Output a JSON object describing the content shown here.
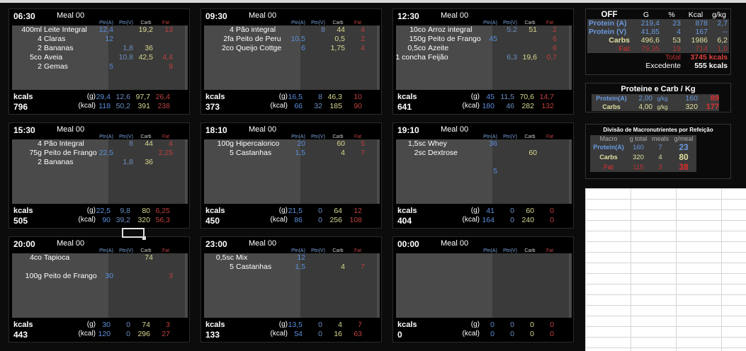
{
  "col_headers": {
    "ptnA": "Ptn(A)",
    "ptnV": "Ptn(V)",
    "carb": "Carb",
    "fat": "Fat"
  },
  "footer_labels": {
    "kcals": "kcals",
    "g": "(g)",
    "kcal": "(kcal)"
  },
  "meals": [
    {
      "time": "06:30",
      "name": "Meal 00",
      "items": [
        {
          "q": "400ml",
          "f": "Leite Integral",
          "a": "12,4",
          "v": "",
          "c": "19,2",
          "x": "13"
        },
        {
          "q": "4",
          "f": "Claras",
          "a": "12",
          "v": "",
          "c": "",
          "x": ""
        },
        {
          "q": "2",
          "f": "Bananas",
          "a": "",
          "v": "1,8",
          "c": "36",
          "x": ""
        },
        {
          "q": "5co",
          "f": "Aveia",
          "a": "",
          "v": "10,8",
          "c": "42,5",
          "x": "4,4"
        },
        {
          "q": "2",
          "f": "Gemas",
          "a": "5",
          "v": "",
          "c": "",
          "x": "9"
        }
      ],
      "kcal_total": "796",
      "g": {
        "a": "29,4",
        "v": "12,6",
        "c": "97,7",
        "x": "26,4"
      },
      "kc": {
        "a": "118",
        "v": "50,2",
        "c": "391",
        "x": "238"
      }
    },
    {
      "time": "09:30",
      "name": "Meal 00",
      "items": [
        {
          "q": "4",
          "f": "Pão integral",
          "a": "",
          "v": "8",
          "c": "44",
          "x": "4"
        },
        {
          "q": "2fa",
          "f": "Peito de Peru",
          "a": "10,5",
          "v": "",
          "c": "0,5",
          "x": "2"
        },
        {
          "q": "2co",
          "f": "Queijo Cottge",
          "a": "6",
          "v": "",
          "c": "1,75",
          "x": "4"
        }
      ],
      "kcal_total": "373",
      "g": {
        "a": "16,5",
        "v": "8",
        "c": "46,3",
        "x": "10"
      },
      "kc": {
        "a": "66",
        "v": "32",
        "c": "185",
        "x": "90"
      }
    },
    {
      "time": "12:30",
      "name": "Meal 00",
      "items": [
        {
          "q": "10co",
          "f": "Arroz integral",
          "a": "",
          "v": "5,2",
          "c": "51",
          "x": "2"
        },
        {
          "q": "150g",
          "f": "Peito de Frango",
          "a": "45",
          "v": "",
          "c": "",
          "x": "6"
        },
        {
          "q": "0,5co",
          "f": "Azeite",
          "a": "",
          "v": "",
          "c": "",
          "x": "6"
        },
        {
          "q": "1 concha",
          "f": "Feijão",
          "a": "",
          "v": "6,3",
          "c": "19,6",
          "x": "0,7"
        }
      ],
      "kcal_total": "641",
      "g": {
        "a": "45",
        "v": "11,5",
        "c": "70,6",
        "x": "14,7"
      },
      "kc": {
        "a": "180",
        "v": "46",
        "c": "282",
        "x": "132"
      }
    },
    {
      "time": "15:30",
      "name": "Meal 00",
      "items": [
        {
          "q": "4",
          "f": "Pão Integral",
          "a": "",
          "v": "8",
          "c": "44",
          "x": "4"
        },
        {
          "q": "75g",
          "f": "Peito de Frango",
          "a": "22,5",
          "v": "",
          "c": "",
          "x": "2,25"
        },
        {
          "q": "2",
          "f": "Bananas",
          "a": "",
          "v": "1,8",
          "c": "36",
          "x": ""
        }
      ],
      "kcal_total": "505",
      "g": {
        "a": "22,5",
        "v": "9,8",
        "c": "80",
        "x": "6,25"
      },
      "kc": {
        "a": "90",
        "v": "39,2",
        "c": "320",
        "x": "56,3"
      }
    },
    {
      "time": "18:10",
      "name": "Meal 00",
      "items": [
        {
          "q": "100g",
          "f": "Hipercalorico",
          "a": "20",
          "v": "",
          "c": "60",
          "x": "5"
        },
        {
          "q": "5",
          "f": "Castanhas",
          "a": "1,5",
          "v": "",
          "c": "4",
          "x": "7"
        }
      ],
      "kcal_total": "450",
      "g": {
        "a": "21,5",
        "v": "0",
        "c": "64",
        "x": "12"
      },
      "kc": {
        "a": "86",
        "v": "0",
        "c": "256",
        "x": "108"
      }
    },
    {
      "time": "19:10",
      "name": "Meal 00",
      "items": [
        {
          "q": "1,5sc",
          "f": "Whey",
          "a": "36",
          "v": "",
          "c": "",
          "x": ""
        },
        {
          "q": "2sc",
          "f": "Dextrose",
          "a": "",
          "v": "",
          "c": "60",
          "x": ""
        },
        {
          "q": "",
          "f": "",
          "a": "",
          "v": "",
          "c": "",
          "x": ""
        },
        {
          "q": "",
          "f": "",
          "a": "5",
          "v": "",
          "c": "",
          "x": ""
        }
      ],
      "kcal_total": "404",
      "g": {
        "a": "41",
        "v": "0",
        "c": "60",
        "x": "0"
      },
      "kc": {
        "a": "164",
        "v": "0",
        "c": "240",
        "x": "0"
      }
    },
    {
      "time": "20:00",
      "name": "Meal 00",
      "items": [
        {
          "q": "4co",
          "f": "Tapioca",
          "a": "",
          "v": "",
          "c": "74",
          "x": ""
        },
        {
          "q": "",
          "f": "",
          "a": "",
          "v": "",
          "c": "",
          "x": ""
        },
        {
          "q": "100g",
          "f": "Peito de Frango",
          "a": "30",
          "v": "",
          "c": "",
          "x": "3"
        }
      ],
      "kcal_total": "443",
      "g": {
        "a": "30",
        "v": "0",
        "c": "74",
        "x": "3"
      },
      "kc": {
        "a": "120",
        "v": "0",
        "c": "296",
        "x": "27"
      }
    },
    {
      "time": "23:00",
      "name": "Meal 00",
      "items": [
        {
          "q": "0,5sc",
          "f": "Mix",
          "a": "12",
          "v": "",
          "c": "",
          "x": ""
        },
        {
          "q": "5",
          "f": "Castanhas",
          "a": "1,5",
          "v": "",
          "c": "4",
          "x": "7"
        }
      ],
      "kcal_total": "133",
      "g": {
        "a": "13,5",
        "v": "0",
        "c": "4",
        "x": "7"
      },
      "kc": {
        "a": "54",
        "v": "0",
        "c": "16",
        "x": "63"
      }
    },
    {
      "time": "00:00",
      "name": "Meal 00",
      "items": [],
      "kcal_total": "0",
      "g": {
        "a": "0",
        "v": "0",
        "c": "0",
        "x": "0"
      },
      "kc": {
        "a": "0",
        "v": "0",
        "c": "0",
        "x": "0"
      }
    }
  ],
  "summary": {
    "head": [
      "OFF",
      "G",
      "%",
      "Kcal",
      "g/kg"
    ],
    "rows": [
      [
        "Protein (A)",
        "219,4",
        "23",
        "878",
        "2,7"
      ],
      [
        "Protein (V)",
        "41,85",
        "4",
        "167",
        "--"
      ],
      [
        "Carbs",
        "496,6",
        "53",
        "1986",
        "6,2"
      ],
      [
        "Fat",
        "79,35",
        "19",
        "714",
        "1,0"
      ]
    ],
    "total_label": "Total",
    "total_value": "3745 kcals",
    "excedente_label": "Excedente",
    "excedente_value": "555 kcals"
  },
  "pc": {
    "title": "Proteine e Carb / Kg",
    "rows": [
      [
        "Protein(A)",
        "2,00",
        "g/kg",
        "160",
        "89"
      ],
      [
        "Carbs",
        "4,00",
        "g/kg",
        "320",
        "177"
      ]
    ]
  },
  "div": {
    "title": "Divisão de Macronutrientes por Refeição",
    "head": [
      "Macro",
      "g total",
      "meals",
      "g/meal"
    ],
    "rows": [
      [
        "Protein(A)",
        "160",
        "7",
        "23"
      ],
      [
        "Carbs",
        "320",
        "4",
        "80"
      ],
      [
        "Fat",
        "115",
        "3",
        "38"
      ]
    ]
  }
}
